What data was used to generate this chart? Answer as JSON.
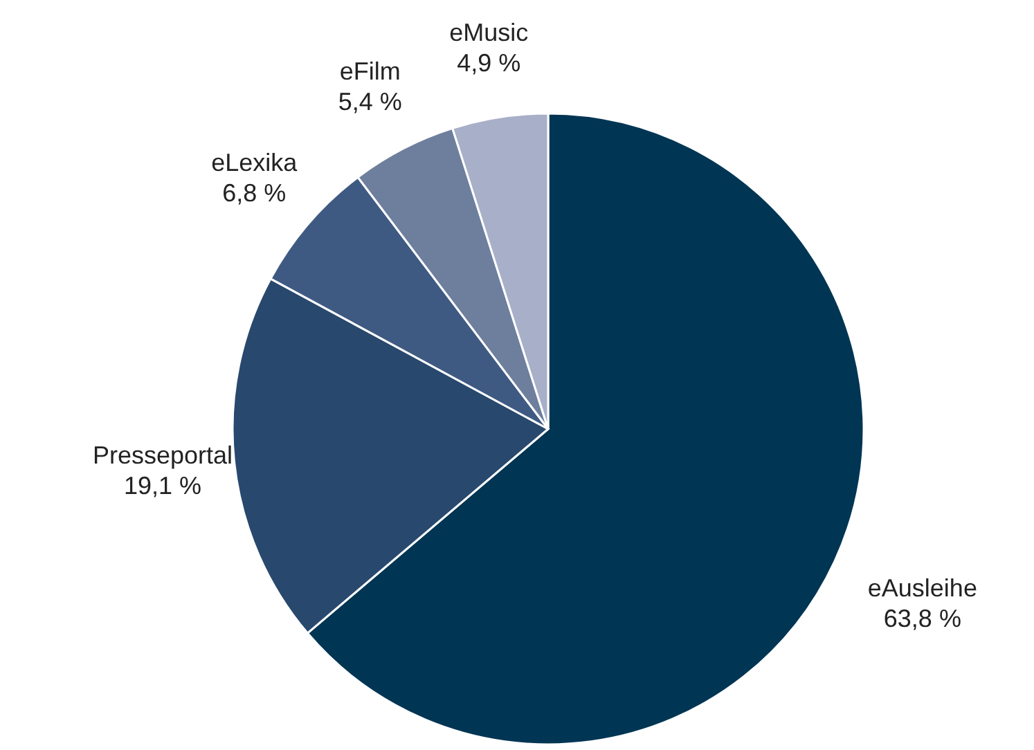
{
  "chart_data": {
    "type": "pie",
    "categories": [
      "eAusleihe",
      "Presseportal",
      "eLexika",
      "eFilm",
      "eMusic"
    ],
    "values": [
      63.8,
      19.1,
      6.8,
      5.4,
      4.9
    ],
    "colors": [
      "#003554",
      "#28486e",
      "#3f5a82",
      "#6e7f9e",
      "#a8afc8"
    ],
    "value_labels": [
      "63,8 %",
      "19,1 %",
      "6,8 %",
      "5,4 %",
      "4,9 %"
    ]
  }
}
